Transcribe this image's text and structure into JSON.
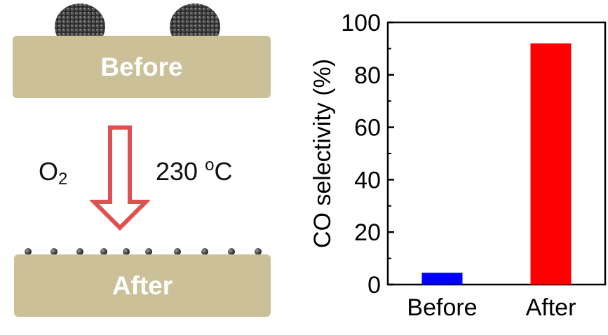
{
  "scheme": {
    "top_panel_label": "Before",
    "bottom_panel_label": "After",
    "left_condition": "O",
    "left_condition_sub": "2",
    "right_condition_value": "230",
    "right_condition_sup": "o",
    "right_condition_unit": "C",
    "arrow_color": "#e05050",
    "slab_color": "#cbc098",
    "large_cluster_count": 2,
    "small_particle_count": 10
  },
  "chart_data": {
    "type": "bar",
    "categories": [
      "Before",
      "After"
    ],
    "values": [
      4.5,
      92
    ],
    "colors": [
      "#0000ff",
      "#ff0000"
    ],
    "ylabel": "CO selectivity (%)",
    "xlabel": "",
    "ylim": [
      0,
      100
    ],
    "yticks": [
      0,
      20,
      40,
      60,
      80,
      100
    ],
    "grid": false
  }
}
